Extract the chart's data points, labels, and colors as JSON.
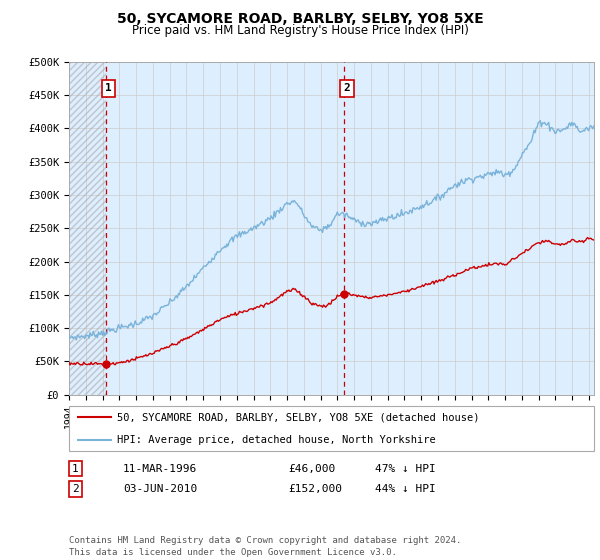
{
  "title": "50, SYCAMORE ROAD, BARLBY, SELBY, YO8 5XE",
  "subtitle": "Price paid vs. HM Land Registry's House Price Index (HPI)",
  "ylabel_ticks": [
    "£0",
    "£50K",
    "£100K",
    "£150K",
    "£200K",
    "£250K",
    "£300K",
    "£350K",
    "£400K",
    "£450K",
    "£500K"
  ],
  "ytick_vals": [
    0,
    50000,
    100000,
    150000,
    200000,
    250000,
    300000,
    350000,
    400000,
    450000,
    500000
  ],
  "ylim": [
    0,
    500000
  ],
  "xlim_start": 1994.0,
  "xlim_end": 2025.3,
  "purchase1_x": 1996.19,
  "purchase1_y": 46000,
  "purchase1_label": "1",
  "purchase2_x": 2010.42,
  "purchase2_y": 152000,
  "purchase2_label": "2",
  "hpi_color": "#7ab3d9",
  "price_color": "#cc0000",
  "marker_color": "#cc0000",
  "vline_color": "#cc0000",
  "bg_color": "#ddeeff",
  "legend_line1": "50, SYCAMORE ROAD, BARLBY, SELBY, YO8 5XE (detached house)",
  "legend_line2": "HPI: Average price, detached house, North Yorkshire",
  "table_row1": [
    "1",
    "11-MAR-1996",
    "£46,000",
    "47% ↓ HPI"
  ],
  "table_row2": [
    "2",
    "03-JUN-2010",
    "£152,000",
    "44% ↓ HPI"
  ],
  "footnote": "Contains HM Land Registry data © Crown copyright and database right 2024.\nThis data is licensed under the Open Government Licence v3.0.",
  "xtick_years": [
    1994,
    1995,
    1996,
    1997,
    1998,
    1999,
    2000,
    2001,
    2002,
    2003,
    2004,
    2005,
    2006,
    2007,
    2008,
    2009,
    2010,
    2011,
    2012,
    2013,
    2014,
    2015,
    2016,
    2017,
    2018,
    2019,
    2020,
    2021,
    2022,
    2023,
    2024,
    2025
  ],
  "hpi_anchors_x": [
    1994,
    1995,
    1996,
    1997,
    1998,
    1999,
    2000,
    2001,
    2002,
    2003,
    2004,
    2005,
    2006,
    2007,
    2007.5,
    2008,
    2008.5,
    2009,
    2009.5,
    2010,
    2010.5,
    2011,
    2011.5,
    2012,
    2012.5,
    2013,
    2014,
    2015,
    2016,
    2017,
    2018,
    2019,
    2019.5,
    2020,
    2020.5,
    2021,
    2021.5,
    2022,
    2022.3,
    2022.8,
    2023,
    2023.5,
    2024,
    2024.5,
    2025,
    2025.3
  ],
  "hpi_anchors_y": [
    86000,
    88000,
    93000,
    100000,
    107000,
    118000,
    138000,
    162000,
    190000,
    218000,
    238000,
    250000,
    265000,
    287000,
    291000,
    270000,
    252000,
    247000,
    253000,
    272000,
    270000,
    262000,
    258000,
    257000,
    260000,
    265000,
    272000,
    283000,
    295000,
    315000,
    325000,
    330000,
    335000,
    330000,
    338000,
    360000,
    378000,
    408000,
    410000,
    400000,
    395000,
    398000,
    408000,
    395000,
    400000,
    403000
  ],
  "price_anchors_x": [
    1994.0,
    1995.0,
    1996.19,
    1997,
    1998,
    1999,
    2000,
    2001,
    2002,
    2003,
    2004,
    2005,
    2006,
    2007,
    2007.5,
    2008,
    2008.5,
    2009,
    2009.5,
    2010,
    2010.42,
    2011,
    2011.5,
    2012,
    2013,
    2014,
    2015,
    2016,
    2017,
    2018,
    2019,
    2019.5,
    2020,
    2021,
    2022,
    2022.5,
    2023,
    2023.5,
    2024,
    2024.5,
    2025,
    2025.3
  ],
  "price_anchors_y": [
    47000,
    47000,
    46000,
    48000,
    54000,
    62000,
    73000,
    84000,
    98000,
    113000,
    122000,
    130000,
    138000,
    155000,
    158000,
    148000,
    137000,
    133000,
    135000,
    148000,
    152000,
    150000,
    147000,
    146000,
    150000,
    155000,
    163000,
    170000,
    180000,
    190000,
    195000,
    197000,
    195000,
    212000,
    228000,
    231000,
    225000,
    226000,
    232000,
    228000,
    235000,
    233000
  ]
}
